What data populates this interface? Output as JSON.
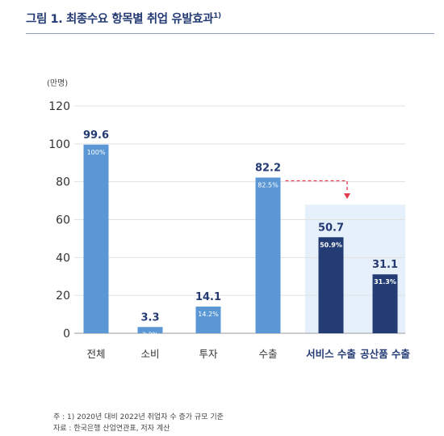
{
  "title": "그림 1. 최종수요 항목별 취업 유발효과",
  "title_sup": "1)",
  "chart_data": {
    "type": "bar",
    "ylabel": "(만명)",
    "ylim": [
      0,
      120
    ],
    "yticks": [
      0,
      20,
      40,
      60,
      80,
      100,
      120
    ],
    "grid": true,
    "categories": [
      "전체",
      "소비",
      "투자",
      "수출",
      "서비스 수출",
      "공산품 수출"
    ],
    "values": [
      99.6,
      3.3,
      14.1,
      82.2,
      50.7,
      31.1
    ],
    "value_labels": [
      "99.6",
      "3.3",
      "14.1",
      "82.2",
      "50.7",
      "31.1"
    ],
    "percent_labels": [
      "100%",
      "3.3%",
      "14.2%",
      "82.5%",
      "50.9%",
      "31.3%"
    ],
    "highlight_categories": [
      "서비스 수출",
      "공산품 수출"
    ],
    "colors": {
      "bar": "#5b97d5",
      "bar_highlight": "#243c74",
      "highlight_bg": "#e6f0fb",
      "arrow": "#e23b4d",
      "value_text": "#243a73",
      "axis_text": "#333333"
    }
  },
  "notes": {
    "line1": "주 : 1) 2020년 대비 2022년 취업자 수 증가 규모 기준",
    "line2": "자료 : 한국은행 산업연관표, 저자 계산"
  }
}
